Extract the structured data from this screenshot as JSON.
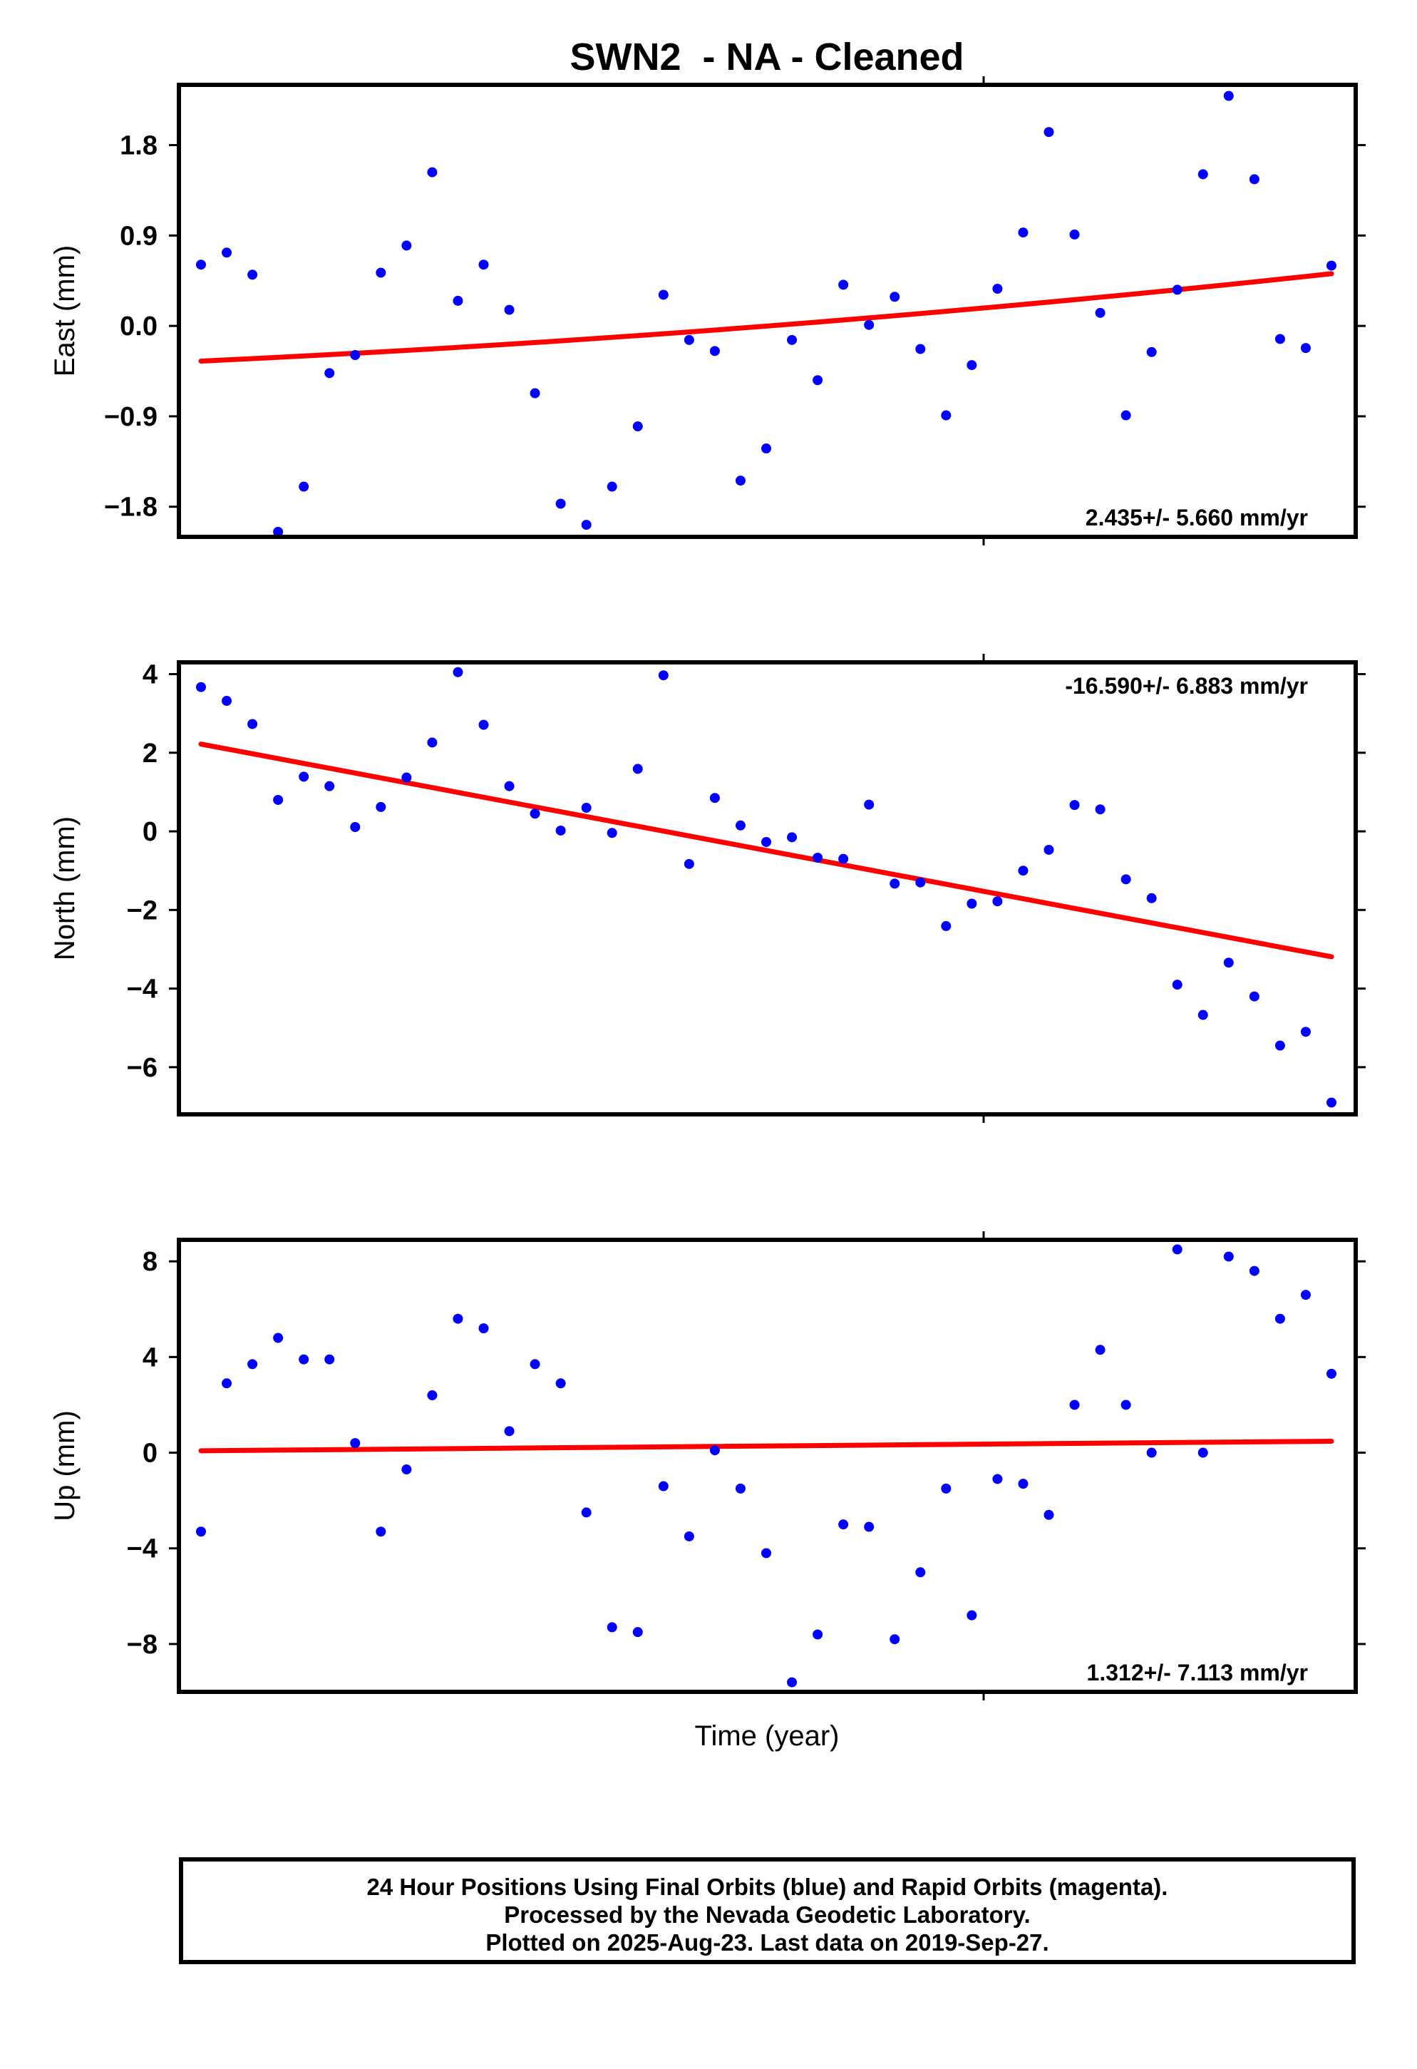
{
  "title": "SWN2  - NA - Cleaned",
  "x_axis_label": "Time (year)",
  "colors": {
    "final_orbits": "#0000ff",
    "trend_line": "#ff0000",
    "frame": "#000000"
  },
  "footer": {
    "line1": "24 Hour Positions Using Final Orbits (blue) and Rapid Orbits (magenta).",
    "line2": "Processed by the Nevada Geodetic Laboratory.",
    "line3": "Plotted on 2025-Aug-23. Last data on 2019-Sep-27."
  },
  "chart_data": [
    {
      "type": "scatter",
      "ylabel": "East (mm)",
      "ylim": [
        -2.1,
        2.4
      ],
      "yticks": [
        1.8,
        0.9,
        0.0,
        -0.9,
        -1.8
      ],
      "ytick_labels": [
        "1.8",
        "0.9",
        "0.0",
        "−0.9",
        "−1.8"
      ],
      "rate_label": "2.435+/- 5.660 mm/yr",
      "rate_position": "bottom-right",
      "grid": false,
      "x": [
        1,
        2,
        3,
        4,
        5,
        6,
        7,
        8,
        9,
        10,
        11,
        12,
        13,
        14,
        15,
        16,
        17,
        18,
        19,
        20,
        21,
        22,
        23,
        24,
        25,
        26,
        27,
        28,
        29,
        30,
        31,
        32,
        33,
        34,
        35,
        36,
        37,
        38,
        39,
        40,
        41,
        42,
        43,
        44,
        45
      ],
      "y": [
        0.61,
        0.73,
        0.51,
        -2.05,
        -1.6,
        -0.47,
        -0.29,
        0.53,
        0.8,
        1.53,
        0.25,
        0.61,
        0.16,
        -0.67,
        -1.77,
        -1.98,
        -1.6,
        -1.0,
        0.31,
        -0.14,
        -0.25,
        -1.54,
        -1.22,
        -0.14,
        -0.54,
        0.41,
        0.01,
        0.29,
        -0.23,
        -0.89,
        -0.39,
        0.37,
        0.93,
        1.93,
        0.91,
        0.13,
        -0.89,
        -0.26,
        0.36,
        1.51,
        2.29,
        1.46,
        -0.13,
        -0.22,
        0.6
      ],
      "trend": {
        "x": [
          1,
          45
        ],
        "y": [
          -0.35,
          0.52
        ],
        "curvature": 0.2
      }
    },
    {
      "type": "scatter",
      "ylabel": "North (mm)",
      "ylim": [
        -7.2,
        4.3
      ],
      "yticks": [
        4,
        2,
        0,
        -2,
        -4,
        -6
      ],
      "ytick_labels": [
        "4",
        "2",
        "0",
        "−2",
        "−4",
        "−6"
      ],
      "rate_label": "-16.590+/- 6.883 mm/yr",
      "rate_position": "top-right",
      "grid": false,
      "x": [
        1,
        2,
        3,
        4,
        5,
        6,
        7,
        8,
        9,
        10,
        11,
        12,
        13,
        14,
        15,
        16,
        17,
        18,
        19,
        20,
        21,
        22,
        23,
        24,
        25,
        26,
        27,
        28,
        29,
        30,
        31,
        32,
        33,
        34,
        35,
        36,
        37,
        38,
        39,
        40,
        41,
        42,
        43,
        44,
        45
      ],
      "y": [
        3.67,
        3.32,
        2.73,
        0.8,
        1.39,
        1.15,
        0.11,
        0.62,
        1.37,
        2.26,
        4.05,
        2.71,
        1.15,
        0.45,
        0.02,
        0.6,
        -0.04,
        1.59,
        3.97,
        -0.83,
        0.85,
        0.15,
        -0.27,
        -0.15,
        -0.67,
        -0.7,
        0.68,
        -1.33,
        -1.3,
        -2.41,
        -1.84,
        -1.78,
        -1.0,
        -0.47,
        0.67,
        0.56,
        -1.22,
        -1.7,
        -3.9,
        -4.67,
        -3.34,
        -4.2,
        -5.45,
        -5.1,
        -6.9
      ],
      "trend": {
        "x": [
          1,
          45
        ],
        "y": [
          2.22,
          -3.19
        ]
      }
    },
    {
      "type": "scatter",
      "ylabel": "Up (mm)",
      "ylim": [
        -10.0,
        8.9
      ],
      "yticks": [
        8,
        4,
        0,
        -4,
        -8
      ],
      "ytick_labels": [
        "8",
        "4",
        "0",
        "−4",
        "−8"
      ],
      "rate_label": "1.312+/- 7.113 mm/yr",
      "rate_position": "bottom-right",
      "grid": false,
      "x": [
        1,
        2,
        3,
        4,
        5,
        6,
        7,
        8,
        9,
        10,
        11,
        12,
        13,
        14,
        15,
        16,
        17,
        18,
        19,
        20,
        21,
        22,
        23,
        24,
        25,
        26,
        27,
        28,
        29,
        30,
        31,
        32,
        33,
        34,
        35,
        36,
        37,
        38,
        39,
        40,
        41,
        42,
        43,
        44,
        45
      ],
      "y": [
        -3.3,
        2.9,
        3.7,
        4.8,
        3.9,
        3.9,
        0.4,
        -3.3,
        -0.7,
        2.4,
        5.6,
        5.2,
        0.9,
        3.7,
        2.9,
        -2.5,
        -7.3,
        -7.5,
        -1.4,
        -3.5,
        0.1,
        -1.5,
        -4.2,
        -9.6,
        -7.6,
        -3.0,
        -3.1,
        -7.8,
        -5.0,
        -1.5,
        -6.8,
        -1.1,
        -1.3,
        -2.6,
        2.0,
        4.3,
        2.0,
        0.0,
        8.5,
        0.0,
        8.2,
        7.6,
        5.6,
        6.6,
        3.3
      ],
      "trend": {
        "x": [
          1,
          45
        ],
        "y": [
          0.08,
          0.48
        ]
      }
    }
  ]
}
